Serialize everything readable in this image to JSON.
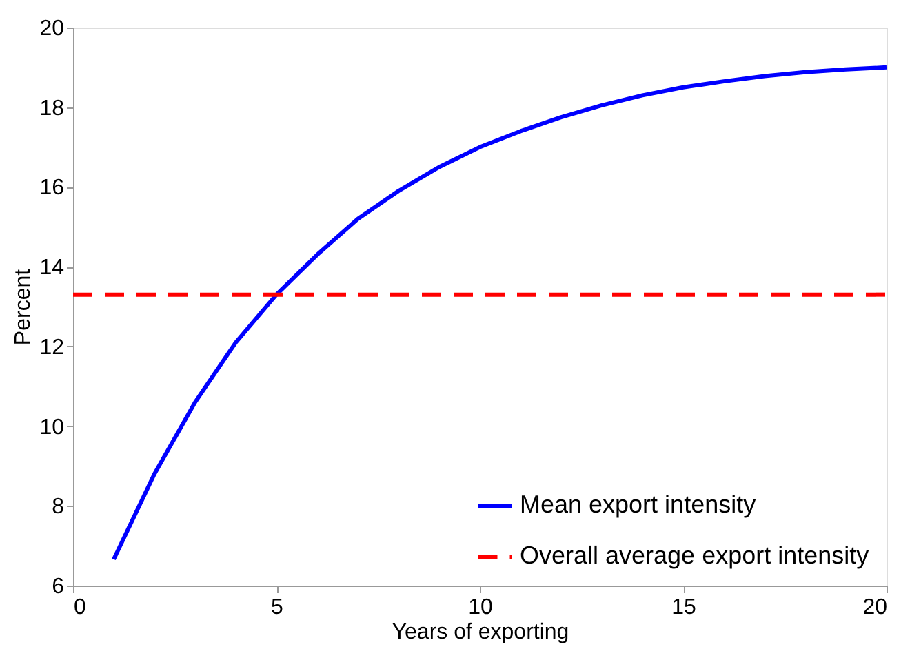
{
  "chart_data": {
    "type": "line",
    "xlabel": "Years of exporting",
    "ylabel": "Percent",
    "xlim": [
      0,
      20
    ],
    "xticks": [
      0,
      5,
      10,
      15,
      20
    ],
    "ylim": [
      6,
      20
    ],
    "yticks": [
      6,
      8,
      10,
      12,
      14,
      16,
      18,
      20
    ],
    "grid": false,
    "legend": "bottom right",
    "marker": "none",
    "series": [
      {
        "name": "Mean export intensity",
        "color": "#0000ff",
        "line_style": "solid",
        "x": [
          1,
          2,
          3,
          4,
          5,
          6,
          7,
          8,
          9,
          10,
          11,
          12,
          13,
          14,
          15,
          16,
          17,
          18,
          19,
          20
        ],
        "values": [
          6.66,
          8.8,
          10.6,
          12.1,
          13.3,
          14.3,
          15.2,
          15.9,
          16.5,
          17.0,
          17.4,
          17.75,
          18.05,
          18.3,
          18.5,
          18.65,
          18.78,
          18.88,
          18.95,
          19.0
        ]
      },
      {
        "name": "Overall average export intensity",
        "color": "#ff0000",
        "line_style": "dashed",
        "x": [
          0,
          20
        ],
        "values": [
          13.3,
          13.3
        ]
      }
    ]
  }
}
